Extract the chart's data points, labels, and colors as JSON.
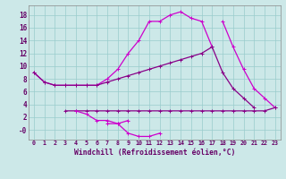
{
  "x": [
    0,
    1,
    2,
    3,
    4,
    5,
    6,
    7,
    8,
    9,
    10,
    11,
    12,
    13,
    14,
    15,
    16,
    17,
    18,
    19,
    20,
    21,
    22,
    23
  ],
  "line_top": [
    9,
    7.5,
    7,
    7,
    7,
    7,
    7,
    8,
    9.5,
    12,
    14,
    17,
    17,
    18,
    18.5,
    17.5,
    17,
    13,
    null,
    null,
    null,
    null,
    null,
    null
  ],
  "line_mid": [
    9,
    7.5,
    7,
    7,
    7,
    7,
    7,
    7.5,
    8,
    8.5,
    9,
    9.5,
    10,
    10.5,
    11,
    11.5,
    12,
    13,
    9,
    6.5,
    5,
    3.5,
    null,
    null
  ],
  "line_bot1": [
    null,
    null,
    null,
    3,
    3,
    3,
    3,
    3,
    3,
    3,
    3,
    3,
    3,
    3,
    3,
    3,
    3,
    3,
    3,
    3,
    3,
    3,
    3,
    3.5
  ],
  "line_dip": [
    null,
    null,
    null,
    null,
    3,
    2.5,
    1.5,
    1.5,
    1,
    1.5,
    null,
    null,
    null,
    null,
    null,
    null,
    null,
    null,
    null,
    null,
    null,
    null,
    null,
    null
  ],
  "line_low": [
    null,
    null,
    null,
    null,
    null,
    null,
    null,
    1,
    1,
    -0.5,
    -1,
    -1,
    -0.5,
    null,
    null,
    null,
    null,
    null,
    null,
    null,
    null,
    null,
    null,
    null
  ],
  "line_right": [
    null,
    null,
    null,
    null,
    null,
    null,
    null,
    null,
    null,
    null,
    null,
    null,
    null,
    null,
    null,
    null,
    null,
    null,
    17,
    13,
    9.5,
    6.5,
    5,
    3.5
  ],
  "bg_color": "#cce8e8",
  "grid_color": "#99cccc",
  "line_color1": "#cc00cc",
  "line_color2": "#880088",
  "xlabel": "Windchill (Refroidissement éolien,°C)",
  "ylim": [
    -1.5,
    19.5
  ],
  "xlim": [
    -0.5,
    23.5
  ],
  "yticks": [
    0,
    2,
    4,
    6,
    8,
    10,
    12,
    14,
    16,
    18
  ],
  "ytick_labels": [
    "-0",
    "2",
    "4",
    "6",
    "8",
    "10",
    "12",
    "14",
    "16",
    "18"
  ],
  "xticks": [
    0,
    1,
    2,
    3,
    4,
    5,
    6,
    7,
    8,
    9,
    10,
    11,
    12,
    13,
    14,
    15,
    16,
    17,
    18,
    19,
    20,
    21,
    22,
    23
  ]
}
